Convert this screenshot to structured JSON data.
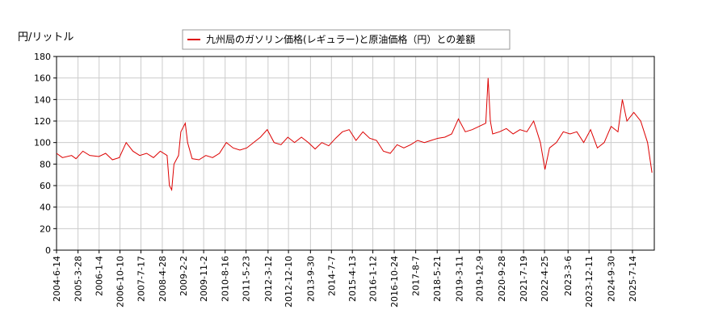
{
  "chart_data": {
    "type": "line",
    "y_label": "円/リットル",
    "xlim": [
      "2004-6-14",
      "2026-5-2"
    ],
    "xticks": [
      "2004-6-14",
      "2005-3-28",
      "2006-1-4",
      "2006-10-10",
      "2007-7-17",
      "2008-4-28",
      "2009-2-2",
      "2009-11-2",
      "2010-8-16",
      "2011-5-23",
      "2012-3-12",
      "2012-12-10",
      "2013-9-30",
      "2014-7-7",
      "2015-4-13",
      "2016-1-12",
      "2016-10-24",
      "2017-8-7",
      "2018-5-21",
      "2019-3-11",
      "2019-12-9",
      "2020-9-28",
      "2021-7-19",
      "2022-4-25",
      "2023-3-6",
      "2023-12-11",
      "2024-9-30",
      "2025-7-14"
    ],
    "ylim": [
      0,
      180
    ],
    "yticks": [
      0,
      20,
      40,
      60,
      80,
      100,
      120,
      140,
      160,
      180
    ],
    "grid": true,
    "legend": "top",
    "x": [
      "2004-6-14",
      "2004-9-1",
      "2005-1-1",
      "2005-3-1",
      "2005-6-1",
      "2005-9-1",
      "2006-1-1",
      "2006-4-1",
      "2006-7-1",
      "2006-10-1",
      "2007-1-1",
      "2007-4-1",
      "2007-7-1",
      "2007-10-1",
      "2008-1-1",
      "2008-4-1",
      "2008-7-1",
      "2008-8-1",
      "2008-9-1",
      "2008-10-1",
      "2008-12-1",
      "2009-1-1",
      "2009-3-1",
      "2009-4-1",
      "2009-6-1",
      "2009-9-1",
      "2009-12-1",
      "2010-3-1",
      "2010-6-1",
      "2010-9-1",
      "2010-12-1",
      "2011-3-1",
      "2011-6-1",
      "2011-9-1",
      "2011-12-1",
      "2012-3-1",
      "2012-6-1",
      "2012-9-1",
      "2012-12-1",
      "2013-3-1",
      "2013-6-1",
      "2013-9-1",
      "2013-12-1",
      "2014-3-1",
      "2014-6-1",
      "2014-9-1",
      "2014-12-1",
      "2015-3-1",
      "2015-6-1",
      "2015-9-1",
      "2015-12-1",
      "2016-3-1",
      "2016-6-1",
      "2016-9-1",
      "2016-12-1",
      "2017-3-1",
      "2017-6-1",
      "2017-9-1",
      "2017-12-1",
      "2018-3-1",
      "2018-6-1",
      "2018-9-1",
      "2018-12-1",
      "2019-3-1",
      "2019-6-1",
      "2019-9-1",
      "2019-12-1",
      "2020-3-1",
      "2020-4-1",
      "2020-5-1",
      "2020-6-1",
      "2020-9-1",
      "2020-12-1",
      "2021-3-1",
      "2021-6-1",
      "2021-9-1",
      "2021-12-1",
      "2022-3-1",
      "2022-5-1",
      "2022-7-1",
      "2022-10-1",
      "2023-1-1",
      "2023-4-1",
      "2023-7-1",
      "2023-10-1",
      "2024-1-1",
      "2024-4-1",
      "2024-7-1",
      "2024-10-1",
      "2025-1-1",
      "2025-3-1",
      "2025-5-1",
      "2025-8-1",
      "2025-11-1",
      "2026-2-1",
      "2026-4-1"
    ],
    "series": [
      {
        "name": "九州局のガソリン価格(レギュラー)と原油価格（円）との差額",
        "color": "#dd0000",
        "values": [
          90,
          86,
          88,
          85,
          92,
          88,
          87,
          90,
          84,
          86,
          100,
          92,
          88,
          90,
          86,
          92,
          88,
          60,
          56,
          80,
          88,
          110,
          118,
          100,
          85,
          84,
          88,
          86,
          90,
          100,
          95,
          93,
          95,
          100,
          105,
          112,
          100,
          98,
          105,
          100,
          105,
          100,
          94,
          100,
          97,
          104,
          110,
          112,
          102,
          110,
          104,
          102,
          92,
          90,
          98,
          95,
          98,
          102,
          100,
          102,
          104,
          105,
          108,
          122,
          110,
          112,
          115,
          118,
          160,
          120,
          108,
          110,
          113,
          108,
          112,
          110,
          120,
          100,
          75,
          95,
          100,
          110,
          108,
          110,
          100,
          112,
          95,
          100,
          115,
          110,
          140,
          120,
          128,
          120,
          100,
          72
        ]
      }
    ]
  }
}
